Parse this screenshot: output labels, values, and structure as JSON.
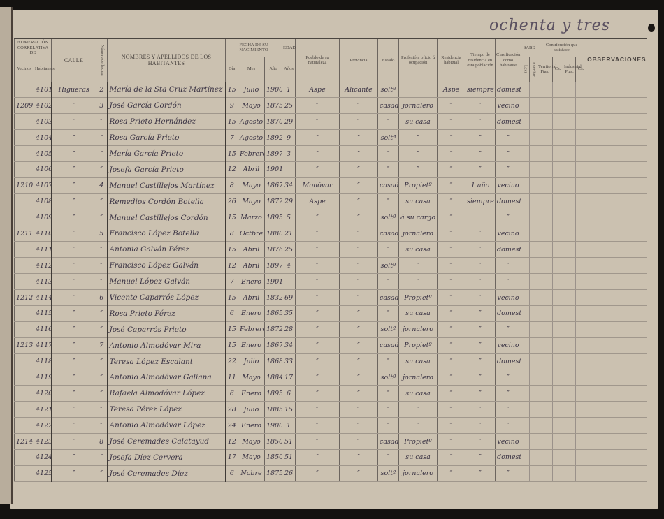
{
  "folio_note": "ochenta y tres",
  "headers": {
    "numeracion": "NUMERACIÓN CORRELATIVA DE",
    "vecinos": "Vecinos",
    "habitantes": "Habitantes",
    "calle": "CALLE",
    "casa": "Número de la casa",
    "nombres": "NOMBRES Y APELLIDOS DE LOS HABITANTES",
    "fecha": "FECHA DE SU NACIMIENTO",
    "dia": "Día",
    "mes": "Mes",
    "ano": "Año",
    "edad": "EDAD",
    "anos": "Años",
    "pueblo": "Pueblo de su naturaleza",
    "provincia": "Provincia",
    "estado": "Estado",
    "profesion": "Profesión, oficio ú ocupación",
    "residencia": "Residencia habitual",
    "tiempo": "Tiempo de residencia en esta población",
    "clasificacion": "Clasificación como habitante",
    "sabe": "SABE",
    "leer": "Leer",
    "escribir": "Escribir",
    "contribucion": "Contribución que satisface",
    "territorial": "Territorial",
    "industrial": "Industrial",
    "ptas": "Ptas.",
    "cs": "Cs.",
    "observaciones": "OBSERVACIONES"
  },
  "rows": [
    {
      "vecino": "",
      "hab": "4101",
      "calle": "Higueras",
      "casa": "2",
      "nombre": "María de la Sta Cruz Martínez",
      "dia": "15",
      "mes": "Julio",
      "ano": "1900",
      "edad": "1",
      "pueblo": "Aspe",
      "provincia": "Alicante",
      "estado": "soltª",
      "profesion": "",
      "residencia": "Aspe",
      "tiempo": "siempre",
      "clasif": "domestª"
    },
    {
      "vecino": "1209",
      "hab": "4102",
      "calle": "″",
      "casa": "3",
      "nombre": "José García Cordón",
      "dia": "9",
      "mes": "Mayo",
      "ano": "1875",
      "edad": "25",
      "pueblo": "″",
      "provincia": "″",
      "estado": "casado",
      "profesion": "jornalero",
      "residencia": "″",
      "tiempo": "″",
      "clasif": "vecino"
    },
    {
      "vecino": "",
      "hab": "4103",
      "calle": "″",
      "casa": "″",
      "nombre": "Rosa Prieto Hernández",
      "dia": "15",
      "mes": "Agosto",
      "ano": "1870",
      "edad": "29",
      "pueblo": "″",
      "provincia": "″",
      "estado": "″",
      "profesion": "su casa",
      "residencia": "″",
      "tiempo": "″",
      "clasif": "domestª"
    },
    {
      "vecino": "",
      "hab": "4104",
      "calle": "″",
      "casa": "″",
      "nombre": "Rosa García Prieto",
      "dia": "7",
      "mes": "Agosto",
      "ano": "1892",
      "edad": "9",
      "pueblo": "″",
      "provincia": "″",
      "estado": "soltª",
      "profesion": "″",
      "residencia": "″",
      "tiempo": "″",
      "clasif": "″"
    },
    {
      "vecino": "",
      "hab": "4105",
      "calle": "″",
      "casa": "″",
      "nombre": "María García Prieto",
      "dia": "15",
      "mes": "Febrero",
      "ano": "1897",
      "edad": "3",
      "pueblo": "″",
      "provincia": "″",
      "estado": "″",
      "profesion": "″",
      "residencia": "″",
      "tiempo": "″",
      "clasif": "″"
    },
    {
      "vecino": "",
      "hab": "4106",
      "calle": "″",
      "casa": "″",
      "nombre": "Josefa García Prieto",
      "dia": "12",
      "mes": "Abril",
      "ano": "1901",
      "edad": "",
      "pueblo": "″",
      "provincia": "″",
      "estado": "″",
      "profesion": "″",
      "residencia": "″",
      "tiempo": "″",
      "clasif": "″"
    },
    {
      "vecino": "1210",
      "hab": "4107",
      "calle": "″",
      "casa": "4",
      "nombre": "Manuel Castillejos Martínez",
      "dia": "8",
      "mes": "Mayo",
      "ano": "1867",
      "edad": "34",
      "pueblo": "Monóvar",
      "provincia": "″",
      "estado": "casado",
      "profesion": "Propietº",
      "residencia": "″",
      "tiempo": "1 año",
      "clasif": "vecino"
    },
    {
      "vecino": "",
      "hab": "4108",
      "calle": "″",
      "casa": "″",
      "nombre": "Remedios Cordón Botella",
      "dia": "26",
      "mes": "Mayo",
      "ano": "1872",
      "edad": "29",
      "pueblo": "Aspe",
      "provincia": "″",
      "estado": "″",
      "profesion": "su casa",
      "residencia": "″",
      "tiempo": "siempre",
      "clasif": "domestª"
    },
    {
      "vecino": "",
      "hab": "4109",
      "calle": "″",
      "casa": "″",
      "nombre": "Manuel Castillejos Cordón",
      "dia": "15",
      "mes": "Marzo",
      "ano": "1895",
      "edad": "5",
      "pueblo": "″",
      "provincia": "″",
      "estado": "soltº",
      "profesion": "á su cargo",
      "residencia": "″",
      "tiempo": "",
      "clasif": "″"
    },
    {
      "vecino": "1211",
      "hab": "4110",
      "calle": "″",
      "casa": "5",
      "nombre": "Francisco López Botella",
      "dia": "8",
      "mes": "Octbre",
      "ano": "1880",
      "edad": "21",
      "pueblo": "″",
      "provincia": "″",
      "estado": "casado",
      "profesion": "jornalero",
      "residencia": "″",
      "tiempo": "″",
      "clasif": "vecino"
    },
    {
      "vecino": "",
      "hab": "4111",
      "calle": "″",
      "casa": "″",
      "nombre": "Antonia Galván Pérez",
      "dia": "15",
      "mes": "Abril",
      "ano": "1876",
      "edad": "25",
      "pueblo": "″",
      "provincia": "″",
      "estado": "″",
      "profesion": "su casa",
      "residencia": "″",
      "tiempo": "″",
      "clasif": "domestª"
    },
    {
      "vecino": "",
      "hab": "4112",
      "calle": "″",
      "casa": "″",
      "nombre": "Francisco López Galván",
      "dia": "12",
      "mes": "Abril",
      "ano": "1897",
      "edad": "4",
      "pueblo": "″",
      "provincia": "″",
      "estado": "soltº",
      "profesion": "″",
      "residencia": "″",
      "tiempo": "″",
      "clasif": "″"
    },
    {
      "vecino": "",
      "hab": "4113",
      "calle": "″",
      "casa": "″",
      "nombre": "Manuel López Galván",
      "dia": "7",
      "mes": "Enero",
      "ano": "1901",
      "edad": "",
      "pueblo": "″",
      "provincia": "″",
      "estado": "″",
      "profesion": "″",
      "residencia": "″",
      "tiempo": "″",
      "clasif": "″"
    },
    {
      "vecino": "1212",
      "hab": "4114",
      "calle": "″",
      "casa": "6",
      "nombre": "Vicente Caparrós López",
      "dia": "15",
      "mes": "Abril",
      "ano": "1832",
      "edad": "69",
      "pueblo": "″",
      "provincia": "″",
      "estado": "casado",
      "profesion": "Propietº",
      "residencia": "″",
      "tiempo": "″",
      "clasif": "vecino"
    },
    {
      "vecino": "",
      "hab": "4115",
      "calle": "″",
      "casa": "″",
      "nombre": "Rosa Prieto Pérez",
      "dia": "6",
      "mes": "Enero",
      "ano": "1865",
      "edad": "35",
      "pueblo": "″",
      "provincia": "″",
      "estado": "″",
      "profesion": "su casa",
      "residencia": "″",
      "tiempo": "″",
      "clasif": "domestª"
    },
    {
      "vecino": "",
      "hab": "4116",
      "calle": "″",
      "casa": "″",
      "nombre": "José Caparrós Prieto",
      "dia": "15",
      "mes": "Febrero",
      "ano": "1872",
      "edad": "28",
      "pueblo": "″",
      "provincia": "″",
      "estado": "soltº",
      "profesion": "jornalero",
      "residencia": "″",
      "tiempo": "″",
      "clasif": "″"
    },
    {
      "vecino": "1213",
      "hab": "4117",
      "calle": "″",
      "casa": "7",
      "nombre": "Antonio Almodóvar Mira",
      "dia": "15",
      "mes": "Enero",
      "ano": "1867",
      "edad": "34",
      "pueblo": "″",
      "provincia": "″",
      "estado": "casado",
      "profesion": "Propietº",
      "residencia": "″",
      "tiempo": "″",
      "clasif": "vecino"
    },
    {
      "vecino": "",
      "hab": "4118",
      "calle": "″",
      "casa": "″",
      "nombre": "Teresa López Escalant",
      "dia": "22",
      "mes": "Julio",
      "ano": "1868",
      "edad": "33",
      "pueblo": "″",
      "provincia": "″",
      "estado": "″",
      "profesion": "su casa",
      "residencia": "″",
      "tiempo": "″",
      "clasif": "domestª"
    },
    {
      "vecino": "",
      "hab": "4119",
      "calle": "″",
      "casa": "″",
      "nombre": "Antonio Almodóvar Galiana",
      "dia": "11",
      "mes": "Mayo",
      "ano": "1884",
      "edad": "17",
      "pueblo": "″",
      "provincia": "″",
      "estado": "soltº",
      "profesion": "jornalero",
      "residencia": "″",
      "tiempo": "″",
      "clasif": "″"
    },
    {
      "vecino": "",
      "hab": "4120",
      "calle": "″",
      "casa": "″",
      "nombre": "Rafaela Almodóvar López",
      "dia": "6",
      "mes": "Enero",
      "ano": "1895",
      "edad": "6",
      "pueblo": "″",
      "provincia": "″",
      "estado": "″",
      "profesion": "su casa",
      "residencia": "″",
      "tiempo": "″",
      "clasif": "″"
    },
    {
      "vecino": "",
      "hab": "4121",
      "calle": "″",
      "casa": "″",
      "nombre": "Teresa Pérez López",
      "dia": "28",
      "mes": "Julio",
      "ano": "1885",
      "edad": "15",
      "pueblo": "″",
      "provincia": "″",
      "estado": "″",
      "profesion": "″",
      "residencia": "″",
      "tiempo": "″",
      "clasif": "″"
    },
    {
      "vecino": "",
      "hab": "4122",
      "calle": "″",
      "casa": "″",
      "nombre": "Antonio Almodóvar López",
      "dia": "24",
      "mes": "Enero",
      "ano": "1900",
      "edad": "1",
      "pueblo": "″",
      "provincia": "″",
      "estado": "″",
      "profesion": "″",
      "residencia": "″",
      "tiempo": "″",
      "clasif": "″"
    },
    {
      "vecino": "1214",
      "hab": "4123",
      "calle": "″",
      "casa": "8",
      "nombre": "José Ceremades Calatayud",
      "dia": "12",
      "mes": "Mayo",
      "ano": "1850",
      "edad": "51",
      "pueblo": "″",
      "provincia": "″",
      "estado": "casado",
      "profesion": "Propietº",
      "residencia": "″",
      "tiempo": "″",
      "clasif": "vecino"
    },
    {
      "vecino": "",
      "hab": "4124",
      "calle": "″",
      "casa": "″",
      "nombre": "Josefa Díez Cervera",
      "dia": "17",
      "mes": "Mayo",
      "ano": "1850",
      "edad": "51",
      "pueblo": "″",
      "provincia": "″",
      "estado": "″",
      "profesion": "su casa",
      "residencia": "″",
      "tiempo": "″",
      "clasif": "domestª"
    },
    {
      "vecino": "",
      "hab": "4125",
      "calle": "″",
      "casa": "″",
      "nombre": "José Ceremades Díez",
      "dia": "6",
      "mes": "Nobre",
      "ano": "1875",
      "edad": "26",
      "pueblo": "″",
      "provincia": "″",
      "estado": "soltº",
      "profesion": "jornalero",
      "residencia": "″",
      "tiempo": "″",
      "clasif": "″"
    }
  ]
}
